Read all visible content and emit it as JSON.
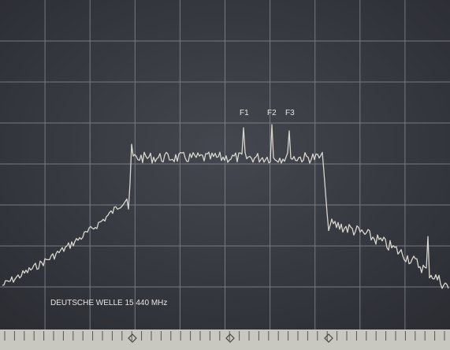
{
  "markers": [
    "F1",
    "F2",
    "F3"
  ],
  "caption": "DEUTSCHE WELLE 15 440 MHz"
}
